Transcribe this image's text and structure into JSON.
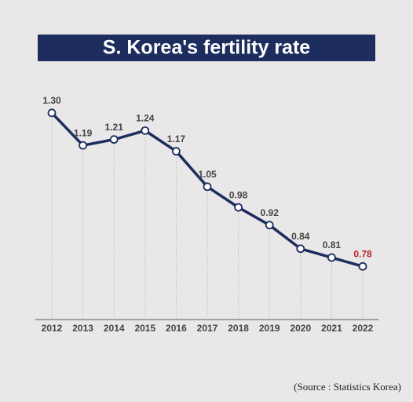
{
  "chart_data": {
    "type": "line",
    "title": "S. Korea's fertility rate",
    "categories": [
      "2012",
      "2013",
      "2014",
      "2015",
      "2016",
      "2017",
      "2018",
      "2019",
      "2020",
      "2021",
      "2022"
    ],
    "series": [
      {
        "name": "Fertility rate",
        "color": "#1c2d5e",
        "values": [
          1.3,
          1.19,
          1.21,
          1.24,
          1.17,
          1.05,
          0.98,
          0.92,
          0.84,
          0.81,
          0.78
        ],
        "value_labels": [
          "1.30",
          "1.19",
          "1.21",
          "1.24",
          "1.17",
          "1.05",
          "0.98",
          "0.92",
          "0.84",
          "0.81",
          "0.78"
        ],
        "value_label_colors": [
          "#444444",
          "#444444",
          "#444444",
          "#444444",
          "#444444",
          "#444444",
          "#444444",
          "#444444",
          "#444444",
          "#444444",
          "#b5252b"
        ]
      }
    ],
    "ylim": [
      0.6,
      1.35
    ],
    "source": "(Source : Statistics Korea)"
  }
}
